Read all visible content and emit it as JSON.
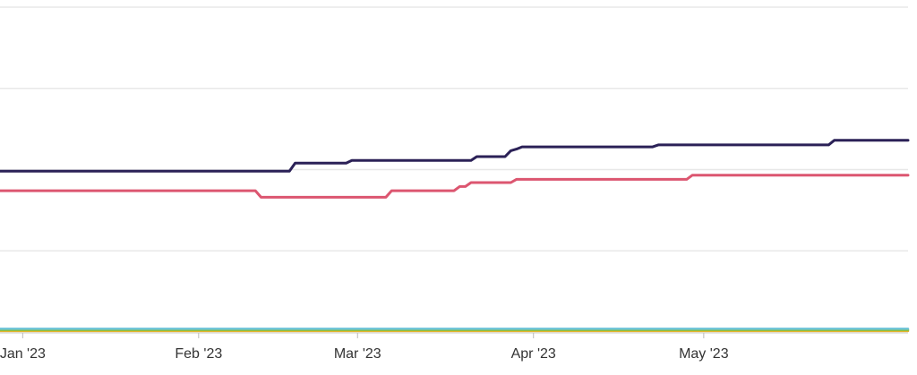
{
  "chart_data": {
    "type": "line",
    "title": "",
    "xlabel": "",
    "ylabel": "",
    "x_axis": {
      "type": "date",
      "range": [
        "2022-12-28",
        "2023-06-06"
      ],
      "ticks": [
        {
          "date": "2023-01-01",
          "label": "Jan '23"
        },
        {
          "date": "2023-02-01",
          "label": "Feb '23"
        },
        {
          "date": "2023-03-01",
          "label": "Mar '23"
        },
        {
          "date": "2023-04-01",
          "label": "Apr '23"
        },
        {
          "date": "2023-05-01",
          "label": "May '23"
        }
      ]
    },
    "y_axis": {
      "range": [
        0,
        100
      ],
      "gridlines": [
        0,
        25,
        50,
        75,
        100
      ],
      "tick_labels_shown": false
    },
    "grid": true,
    "series": [
      {
        "color": "#2b2157",
        "points": [
          [
            "2022-12-28",
            49.5
          ],
          [
            "2023-02-17",
            49.5
          ],
          [
            "2023-02-18",
            52
          ],
          [
            "2023-02-27",
            52
          ],
          [
            "2023-02-28",
            52.8
          ],
          [
            "2023-03-21",
            52.8
          ],
          [
            "2023-03-22",
            54
          ],
          [
            "2023-03-27",
            54
          ],
          [
            "2023-03-28",
            55.8
          ],
          [
            "2023-03-29",
            56.3
          ],
          [
            "2023-03-30",
            57
          ],
          [
            "2023-04-22",
            57
          ],
          [
            "2023-04-23",
            57.6
          ],
          [
            "2023-05-23",
            57.6
          ],
          [
            "2023-05-24",
            59
          ],
          [
            "2023-06-06",
            59
          ]
        ]
      },
      {
        "color": "#dc5670",
        "points": [
          [
            "2022-12-28",
            43.5
          ],
          [
            "2023-02-11",
            43.5
          ],
          [
            "2023-02-12",
            41.5
          ],
          [
            "2023-03-06",
            41.5
          ],
          [
            "2023-03-07",
            43.5
          ],
          [
            "2023-03-18",
            43.5
          ],
          [
            "2023-03-19",
            44.8
          ],
          [
            "2023-03-20",
            44.8
          ],
          [
            "2023-03-21",
            46
          ],
          [
            "2023-03-28",
            46
          ],
          [
            "2023-03-29",
            47
          ],
          [
            "2023-04-28",
            47
          ],
          [
            "2023-04-29",
            48.3
          ],
          [
            "2023-06-06",
            48.3
          ]
        ]
      },
      {
        "color": "#6ac3d6",
        "points": [
          [
            "2022-12-28",
            1.0
          ],
          [
            "2023-06-06",
            1.0
          ]
        ]
      },
      {
        "color": "#8fbf3a",
        "points": [
          [
            "2022-12-28",
            0.6
          ],
          [
            "2023-06-06",
            0.6
          ]
        ]
      },
      {
        "color": "#e8b530",
        "points": [
          [
            "2022-12-28",
            0.3
          ],
          [
            "2023-06-06",
            0.3
          ]
        ]
      }
    ]
  }
}
